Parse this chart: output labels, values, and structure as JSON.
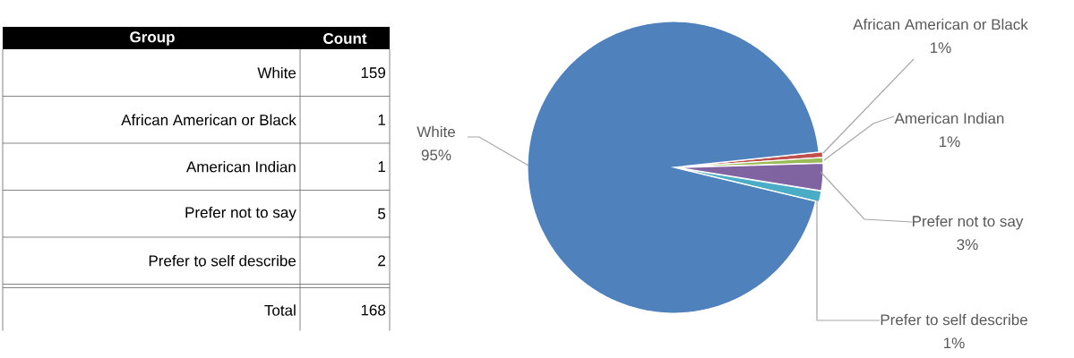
{
  "chart_data": [
    {
      "type": "other",
      "categories": [
        "White",
        "African American or Black",
        "American Indian",
        "Prefer not to say",
        "Prefer to self describe"
      ],
      "values": [
        159,
        1,
        1,
        5,
        2
      ],
      "data_labels": true,
      "annotations": [
        "Group",
        "Count",
        "Total",
        "168"
      ]
    },
    {
      "type": "pie",
      "categories": [
        "White",
        "African American or Black",
        "American Indian",
        "Prefer not to say",
        "Prefer to self describe"
      ],
      "values": [
        94.6,
        0.6,
        0.6,
        3.0,
        1.2
      ],
      "value_labels": [
        "95%",
        "1%",
        "1%",
        "3%",
        "1%"
      ],
      "colors": [
        "#4f81bd",
        "#c0504d",
        "#9bbb59",
        "#8064a2",
        "#4bacc6"
      ]
    }
  ]
}
